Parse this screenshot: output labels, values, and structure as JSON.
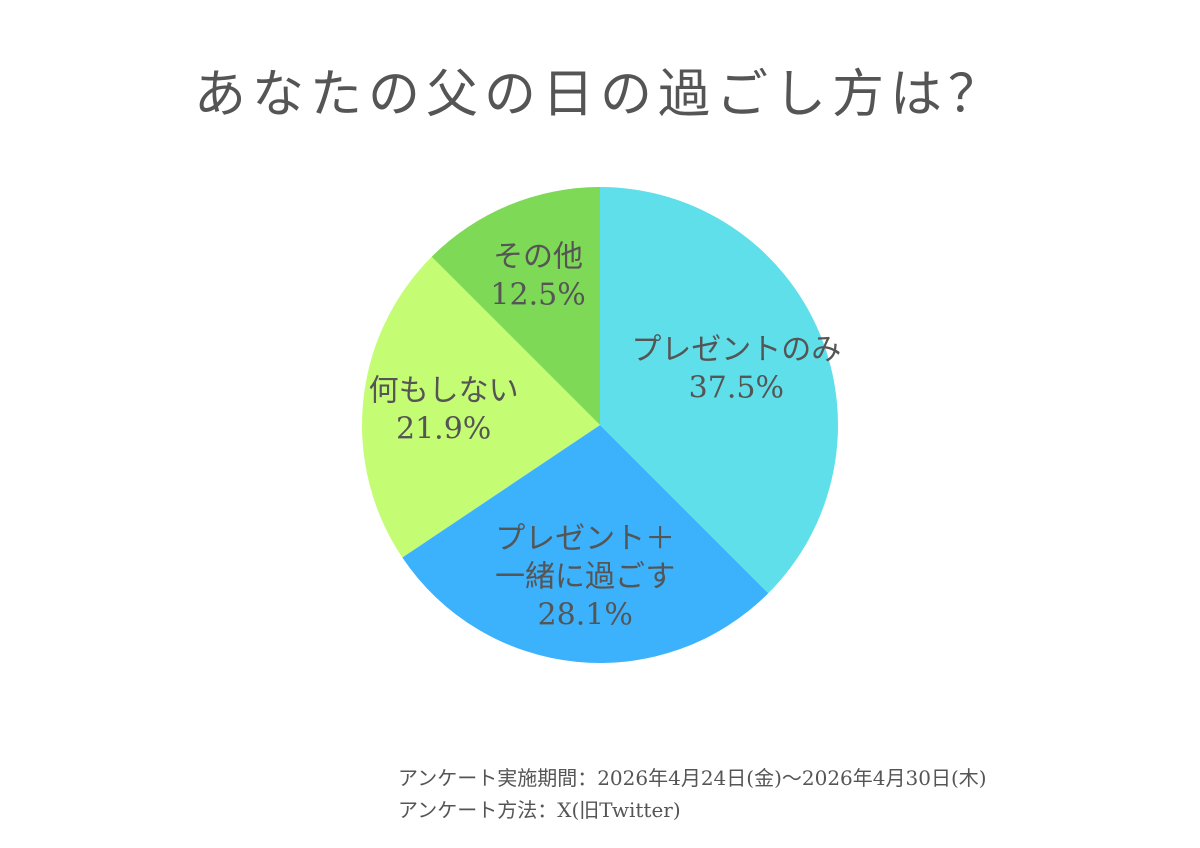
{
  "title": "あなたの父の日の過ごし方は？",
  "footer": {
    "period": "アンケート実施期間：2026年4月24日(金)〜2026年4月30日(木)",
    "method": "アンケート方法：X(旧Twitter)"
  },
  "chart_data": {
    "type": "pie",
    "title": "あなたの父の日の過ごし方は？",
    "start": "12 o'clock, clockwise",
    "slices": [
      {
        "label": [
          "プレゼントのみ"
        ],
        "value": 37.5,
        "display": "37.5%",
        "color": "#5fdfea"
      },
      {
        "label": [
          "プレゼント＋",
          "一緒に過ごす"
        ],
        "value": 28.1,
        "display": "28.1%",
        "color": "#3db2fc"
      },
      {
        "label": [
          "何もしない"
        ],
        "value": 21.9,
        "display": "21.9%",
        "color": "#c4fc74"
      },
      {
        "label": [
          "その他"
        ],
        "value": 12.5,
        "display": "12.5%",
        "color": "#7ed957"
      }
    ]
  }
}
